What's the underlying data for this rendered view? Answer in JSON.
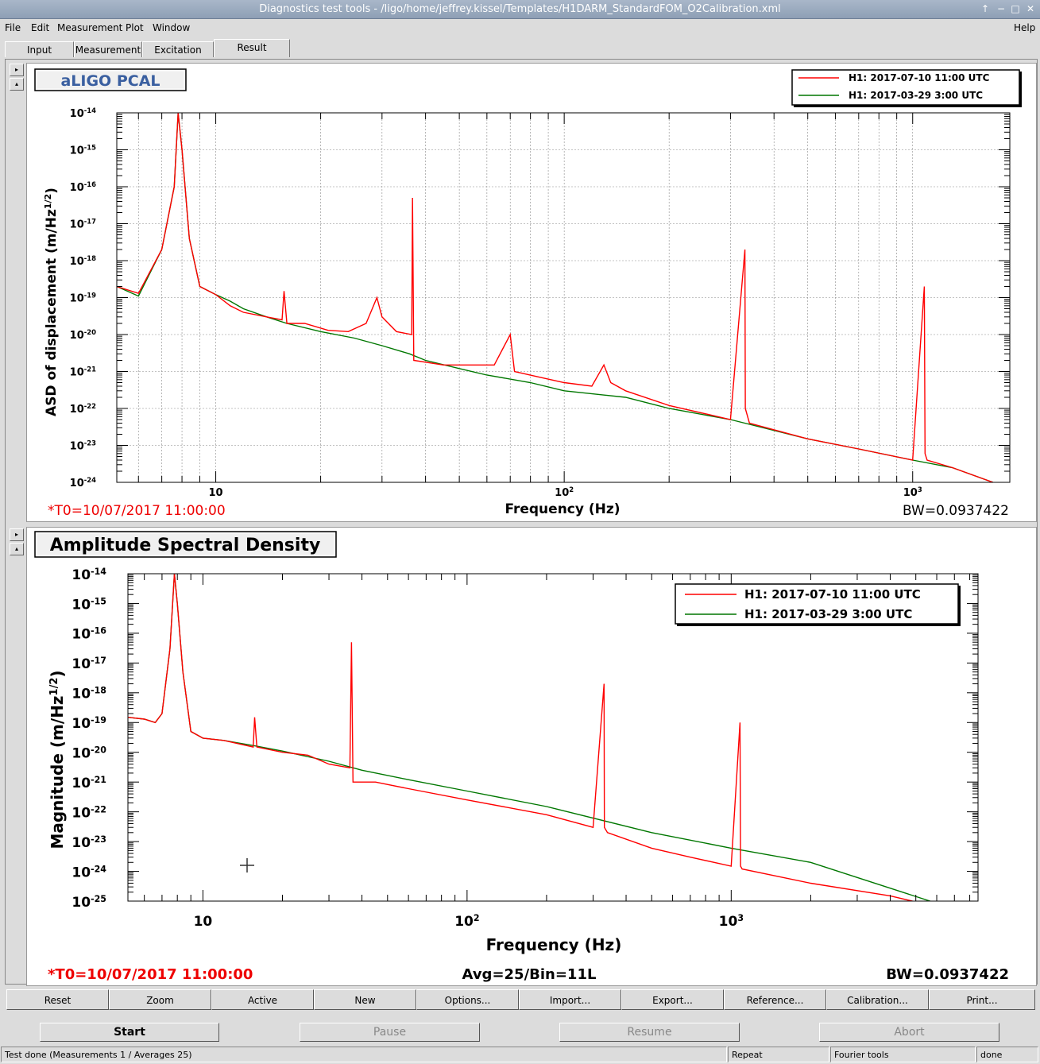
{
  "window": {
    "title": "Diagnostics test tools - /ligo/home/jeffrey.kissel/Templates/H1DARM_StandardFOM_O2Calibration.xml",
    "controls": [
      "↑",
      "−",
      "□",
      "✕"
    ]
  },
  "menu": {
    "items": [
      "File",
      "Edit",
      "Measurement",
      "Plot",
      "Window"
    ],
    "help": "Help"
  },
  "tabs": [
    "Input",
    "Measurement",
    "Excitation",
    "Result"
  ],
  "active_tab": "Result",
  "plot1": {
    "title": "aLIGO PCAL",
    "ylabel_text": "ASD of displacement (m/Hz",
    "ylabel_sup": "1/2",
    "ylabel_end": ")",
    "xlabel": "Frequency (Hz)",
    "t0": "*T0=10/07/2017 11:00:00",
    "bw": "BW=0.0937422",
    "legend": [
      "H1: 2017-07-10 11:00 UTC",
      "H1: 2017-03-29 3:00 UTC"
    ]
  },
  "plot2": {
    "title": "Amplitude Spectral Density",
    "ylabel_text": "Magnitude (m/Hz",
    "ylabel_sup": "1/2",
    "ylabel_end": ")",
    "xlabel": "Frequency (Hz)",
    "t0": "*T0=10/07/2017 11:00:00",
    "avg": "Avg=25/Bin=11L",
    "bw": "BW=0.0937422",
    "legend": [
      "H1: 2017-07-10 11:00 UTC",
      "H1: 2017-03-29 3:00 UTC"
    ]
  },
  "colors": {
    "series_red": "#ff0000",
    "series_green": "#007700",
    "t0_text": "#ee0000",
    "title_blue": "#3a5fa0"
  },
  "chart_data": [
    {
      "type": "line",
      "title": "aLIGO PCAL",
      "xlabel": "Frequency (Hz)",
      "ylabel": "ASD of displacement (m/Hz^1/2)",
      "xscale": "log",
      "yscale": "log",
      "xlim": [
        5.2,
        1900
      ],
      "ylim": [
        1e-24,
        1e-14
      ],
      "xticks": [
        "10",
        "10^2",
        "10^3"
      ],
      "yticks": [
        "10^-14",
        "10^-15",
        "10^-16",
        "10^-17",
        "10^-18",
        "10^-19",
        "10^-20",
        "10^-21",
        "10^-22",
        "10^-23",
        "10^-24"
      ],
      "grid": true,
      "legend": "top-right",
      "series": [
        {
          "name": "H1: 2017-07-10 11:00 UTC",
          "color": "#ff0000",
          "x": [
            5.2,
            6,
            7,
            7.6,
            7.8,
            8.0,
            8.4,
            9,
            10,
            11,
            12,
            14,
            15.5,
            15.7,
            16,
            18,
            21,
            24,
            27,
            29,
            30,
            33,
            36.5,
            36.7,
            37,
            45,
            55,
            63,
            70,
            72,
            85,
            100,
            120,
            130,
            136,
            150,
            200,
            300,
            330,
            331,
            340,
            500,
            700,
            1000,
            1080,
            1085,
            1100,
            1300,
            1700
          ],
          "y": [
            2e-19,
            1.3e-19,
            2e-18,
            1e-16,
            1e-14,
            1e-15,
            4e-18,
            2e-19,
            1.2e-19,
            6e-20,
            4e-20,
            3e-20,
            2.5e-20,
            1.5e-19,
            2e-20,
            2e-20,
            1.3e-20,
            1.2e-20,
            2e-20,
            1e-19,
            3e-20,
            1.2e-20,
            1e-20,
            5e-17,
            2e-21,
            1.5e-21,
            1.5e-21,
            1.5e-21,
            1e-20,
            1e-21,
            7e-22,
            5e-22,
            4e-22,
            1.5e-21,
            5e-22,
            3e-22,
            1.2e-22,
            5e-23,
            2e-18,
            1e-22,
            4e-23,
            1.5e-23,
            8e-24,
            4e-24,
            2e-19,
            6e-24,
            4e-24,
            2.5e-24,
            1e-24
          ]
        },
        {
          "name": "H1: 2017-03-29 3:00 UTC",
          "color": "#007700",
          "x": [
            5.2,
            6,
            7,
            7.6,
            7.8,
            8.0,
            8.4,
            9,
            10,
            11,
            12,
            14,
            16,
            20,
            25,
            30,
            36,
            40,
            50,
            60,
            80,
            100,
            150,
            200,
            300,
            500,
            700,
            1000,
            1300,
            1700
          ],
          "y": [
            2e-19,
            1.1e-19,
            2e-18,
            1e-16,
            1e-14,
            1e-15,
            4e-18,
            2e-19,
            1.2e-19,
            8e-20,
            5e-20,
            3e-20,
            2e-20,
            1.2e-20,
            8e-21,
            5e-21,
            3e-21,
            2e-21,
            1.2e-21,
            8e-22,
            5e-22,
            3e-22,
            2e-22,
            1e-22,
            5e-23,
            1.5e-23,
            8e-24,
            4e-24,
            2.5e-24,
            1e-24
          ]
        }
      ]
    },
    {
      "type": "line",
      "title": "Amplitude Spectral Density",
      "xlabel": "Frequency (Hz)",
      "ylabel": "Magnitude (m/Hz^1/2)",
      "xscale": "log",
      "yscale": "log",
      "xlim": [
        5.2,
        8600
      ],
      "ylim": [
        1e-25,
        1e-14
      ],
      "xticks": [
        "10",
        "10^2",
        "10^3"
      ],
      "yticks": [
        "10^-14",
        "10^-15",
        "10^-16",
        "10^-17",
        "10^-18",
        "10^-19",
        "10^-20",
        "10^-21",
        "10^-22",
        "10^-23",
        "10^-24",
        "10^-25"
      ],
      "grid": false,
      "legend": "top-right",
      "series": [
        {
          "name": "H1: 2017-07-10 11:00 UTC",
          "color": "#ff0000",
          "x": [
            5.2,
            6,
            6.6,
            7,
            7.5,
            7.8,
            8.0,
            8.4,
            9,
            10,
            12,
            15.5,
            15.7,
            16,
            20,
            25,
            30,
            36,
            36.5,
            37,
            45,
            60,
            100,
            200,
            300,
            330,
            331,
            340,
            500,
            700,
            1000,
            1080,
            1085,
            1100,
            2000,
            4000,
            8600
          ],
          "y": [
            1.5e-19,
            1.3e-19,
            1e-19,
            2e-19,
            3e-17,
            1e-14,
            1e-15,
            5e-18,
            5e-20,
            3e-20,
            2.5e-20,
            1.5e-20,
            1.5e-19,
            1.5e-20,
            1e-20,
            8e-21,
            4e-21,
            3e-21,
            5e-17,
            1e-21,
            1e-21,
            6e-22,
            2.5e-22,
            8e-23,
            3e-23,
            2e-18,
            3e-23,
            2e-23,
            6e-24,
            3e-24,
            1.5e-24,
            1e-19,
            1.5e-24,
            1.2e-24,
            4e-25,
            1.5e-25,
            3e-26
          ]
        },
        {
          "name": "H1: 2017-03-29 3:00 UTC",
          "color": "#007700",
          "x": [
            5.2,
            6,
            6.6,
            7,
            7.5,
            7.8,
            8.0,
            8.4,
            9,
            10,
            12,
            16,
            20,
            30,
            40,
            60,
            100,
            200,
            500,
            1000,
            2000,
            8600
          ],
          "y": [
            1.5e-19,
            1.3e-19,
            1e-19,
            2e-19,
            3e-17,
            1e-14,
            1e-15,
            5e-18,
            5e-20,
            3e-20,
            2.5e-20,
            1.6e-20,
            1.1e-20,
            5e-21,
            2.5e-21,
            1.2e-21,
            5e-22,
            1.5e-22,
            2e-23,
            6e-24,
            2e-24,
            3e-26
          ]
        }
      ]
    }
  ],
  "buttons": [
    "Reset",
    "Zoom",
    "Active",
    "New",
    "Options...",
    "Import...",
    "Export...",
    "Reference...",
    "Calibration...",
    "Print..."
  ],
  "controls": {
    "start": "Start",
    "pause": "Pause",
    "resume": "Resume",
    "abort": "Abort"
  },
  "status": {
    "message": "Test done (Measurements 1 / Averages 25)",
    "repeat": "Repeat",
    "fourier": "Fourier tools",
    "state": "done"
  }
}
